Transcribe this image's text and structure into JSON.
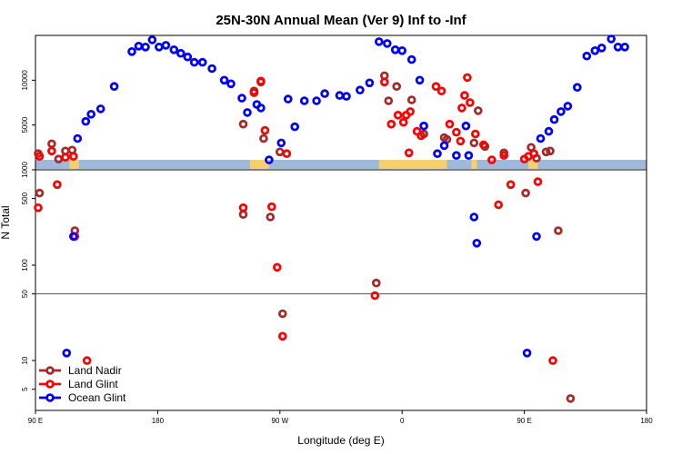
{
  "chart_data": {
    "type": "scatter",
    "title": "25N-30N Annual Mean (Ver 9)   Inf to -Inf",
    "xlabel": "Longitude (deg E)",
    "ylabel": "N Total",
    "x_ticks": [
      {
        "value": 90,
        "label": "90 E"
      },
      {
        "value": 180,
        "label": "180"
      },
      {
        "value": 270,
        "label": "90 W"
      },
      {
        "value": 360,
        "label": "0"
      },
      {
        "value": 450,
        "label": "90 E"
      },
      {
        "value": 540,
        "label": "180"
      }
    ],
    "xlim": [
      90,
      540
    ],
    "upper_panel": {
      "scale": "linear",
      "ylim": [
        0,
        15000
      ],
      "ticks": [
        {
          "value": 5000,
          "label": "5000"
        },
        {
          "value": 10000,
          "label": "10000"
        }
      ]
    },
    "lower_panel": {
      "scale": "log",
      "ylim": [
        3,
        1000
      ],
      "ticks": [
        {
          "value": 1000,
          "label": "1000"
        },
        {
          "value": 500,
          "label": "500"
        },
        {
          "value": 100,
          "label": "100"
        },
        {
          "value": 50,
          "label": "50"
        },
        {
          "value": 10,
          "label": "10"
        },
        {
          "value": 5,
          "label": "5"
        }
      ],
      "reference_line": 50
    },
    "land_mask_colors": {
      "land": "#f5d06e",
      "ocean": "#9fb9d9"
    },
    "land_segments": [
      [
        115,
        122
      ],
      [
        248,
        262
      ],
      [
        343,
        393
      ],
      [
        411,
        415
      ],
      [
        453,
        460
      ]
    ],
    "series": [
      {
        "name": "Land Nadir",
        "color": "#a52a2a",
        "points": [
          [
            92,
            1800
          ],
          [
            93,
            570
          ],
          [
            102,
            2900
          ],
          [
            107,
            1200
          ],
          [
            112,
            2100
          ],
          [
            117,
            2200
          ],
          [
            119,
            230
          ],
          [
            243,
            5100
          ],
          [
            243,
            340
          ],
          [
            251,
            8800
          ],
          [
            256,
            9800
          ],
          [
            258,
            3500
          ],
          [
            263,
            320
          ],
          [
            270,
            2000
          ],
          [
            272,
            31
          ],
          [
            341,
            65
          ],
          [
            347,
            10500
          ],
          [
            350,
            7700
          ],
          [
            356,
            9300
          ],
          [
            367,
            7800
          ],
          [
            376,
            4000
          ],
          [
            391,
            3600
          ],
          [
            393,
            3400
          ],
          [
            413,
            3000
          ],
          [
            416,
            6600
          ],
          [
            421,
            2600
          ],
          [
            435,
            1900
          ],
          [
            451,
            570
          ],
          [
            455,
            2500
          ],
          [
            459,
            1300
          ],
          [
            466,
            2000
          ],
          [
            469,
            2100
          ],
          [
            475,
            230
          ],
          [
            484,
            4
          ]
        ]
      },
      {
        "name": "Land Glint",
        "color": "#ff0000",
        "points": [
          [
            92,
            400
          ],
          [
            93,
            1500
          ],
          [
            102,
            2100
          ],
          [
            106,
            700
          ],
          [
            112,
            1400
          ],
          [
            118,
            1500
          ],
          [
            119,
            200
          ],
          [
            128,
            10
          ],
          [
            243,
            400
          ],
          [
            251,
            8600
          ],
          [
            256,
            9900
          ],
          [
            259,
            4400
          ],
          [
            264,
            410
          ],
          [
            268,
            95
          ],
          [
            275,
            1800
          ],
          [
            272,
            18
          ],
          [
            340,
            48
          ],
          [
            347,
            9800
          ],
          [
            352,
            5100
          ],
          [
            357,
            6100
          ],
          [
            361,
            5300
          ],
          [
            363,
            6100
          ],
          [
            366,
            6500
          ],
          [
            365,
            1900
          ],
          [
            371,
            4300
          ],
          [
            374,
            3800
          ],
          [
            385,
            9300
          ],
          [
            389,
            8800
          ],
          [
            395,
            5100
          ],
          [
            400,
            4200
          ],
          [
            403,
            3200
          ],
          [
            404,
            6900
          ],
          [
            406,
            8300
          ],
          [
            408,
            10300
          ],
          [
            410,
            7500
          ],
          [
            414,
            4000
          ],
          [
            420,
            2800
          ],
          [
            426,
            1100
          ],
          [
            431,
            430
          ],
          [
            435,
            1600
          ],
          [
            440,
            700
          ],
          [
            450,
            1200
          ],
          [
            453,
            1500
          ],
          [
            457,
            1800
          ],
          [
            460,
            750
          ],
          [
            471,
            10
          ]
        ]
      },
      {
        "name": "Ocean Glint",
        "color": "#0000ff",
        "points": [
          [
            113,
            12
          ],
          [
            118,
            200
          ],
          [
            121,
            3500
          ],
          [
            127,
            5400
          ],
          [
            131,
            6200
          ],
          [
            138,
            6800
          ],
          [
            148,
            9300
          ],
          [
            161,
            13200
          ],
          [
            166,
            13800
          ],
          [
            171,
            13700
          ],
          [
            176,
            14500
          ],
          [
            181,
            13700
          ],
          [
            186,
            13900
          ],
          [
            192,
            13400
          ],
          [
            197,
            13000
          ],
          [
            202,
            12600
          ],
          [
            207,
            12000
          ],
          [
            213,
            12000
          ],
          [
            220,
            11300
          ],
          [
            229,
            10000
          ],
          [
            234,
            9600
          ],
          [
            242,
            8000
          ],
          [
            246,
            6400
          ],
          [
            253,
            7300
          ],
          [
            256,
            6900
          ],
          [
            262,
            1100
          ],
          [
            271,
            3000
          ],
          [
            276,
            7900
          ],
          [
            281,
            4800
          ],
          [
            288,
            7700
          ],
          [
            297,
            7700
          ],
          [
            303,
            8500
          ],
          [
            314,
            8300
          ],
          [
            319,
            8200
          ],
          [
            329,
            8900
          ],
          [
            336,
            9700
          ],
          [
            343,
            14300
          ],
          [
            349,
            14100
          ],
          [
            355,
            13400
          ],
          [
            360,
            13300
          ],
          [
            367,
            12300
          ],
          [
            373,
            10000
          ],
          [
            376,
            4900
          ],
          [
            386,
            1800
          ],
          [
            391,
            2700
          ],
          [
            400,
            1600
          ],
          [
            407,
            4900
          ],
          [
            409,
            1600
          ],
          [
            413,
            320
          ],
          [
            415,
            170
          ],
          [
            452,
            12
          ],
          [
            459,
            200
          ],
          [
            462,
            3500
          ],
          [
            468,
            4300
          ],
          [
            472,
            5600
          ],
          [
            477,
            6500
          ],
          [
            482,
            7100
          ],
          [
            489,
            9200
          ],
          [
            496,
            12700
          ],
          [
            502,
            13300
          ],
          [
            507,
            13600
          ],
          [
            514,
            14600
          ],
          [
            519,
            13700
          ],
          [
            524,
            13700
          ]
        ]
      }
    ],
    "legend": {
      "placement": "bottom-left",
      "entries": [
        "Land Nadir",
        "Land Glint",
        "Ocean Glint"
      ]
    }
  }
}
